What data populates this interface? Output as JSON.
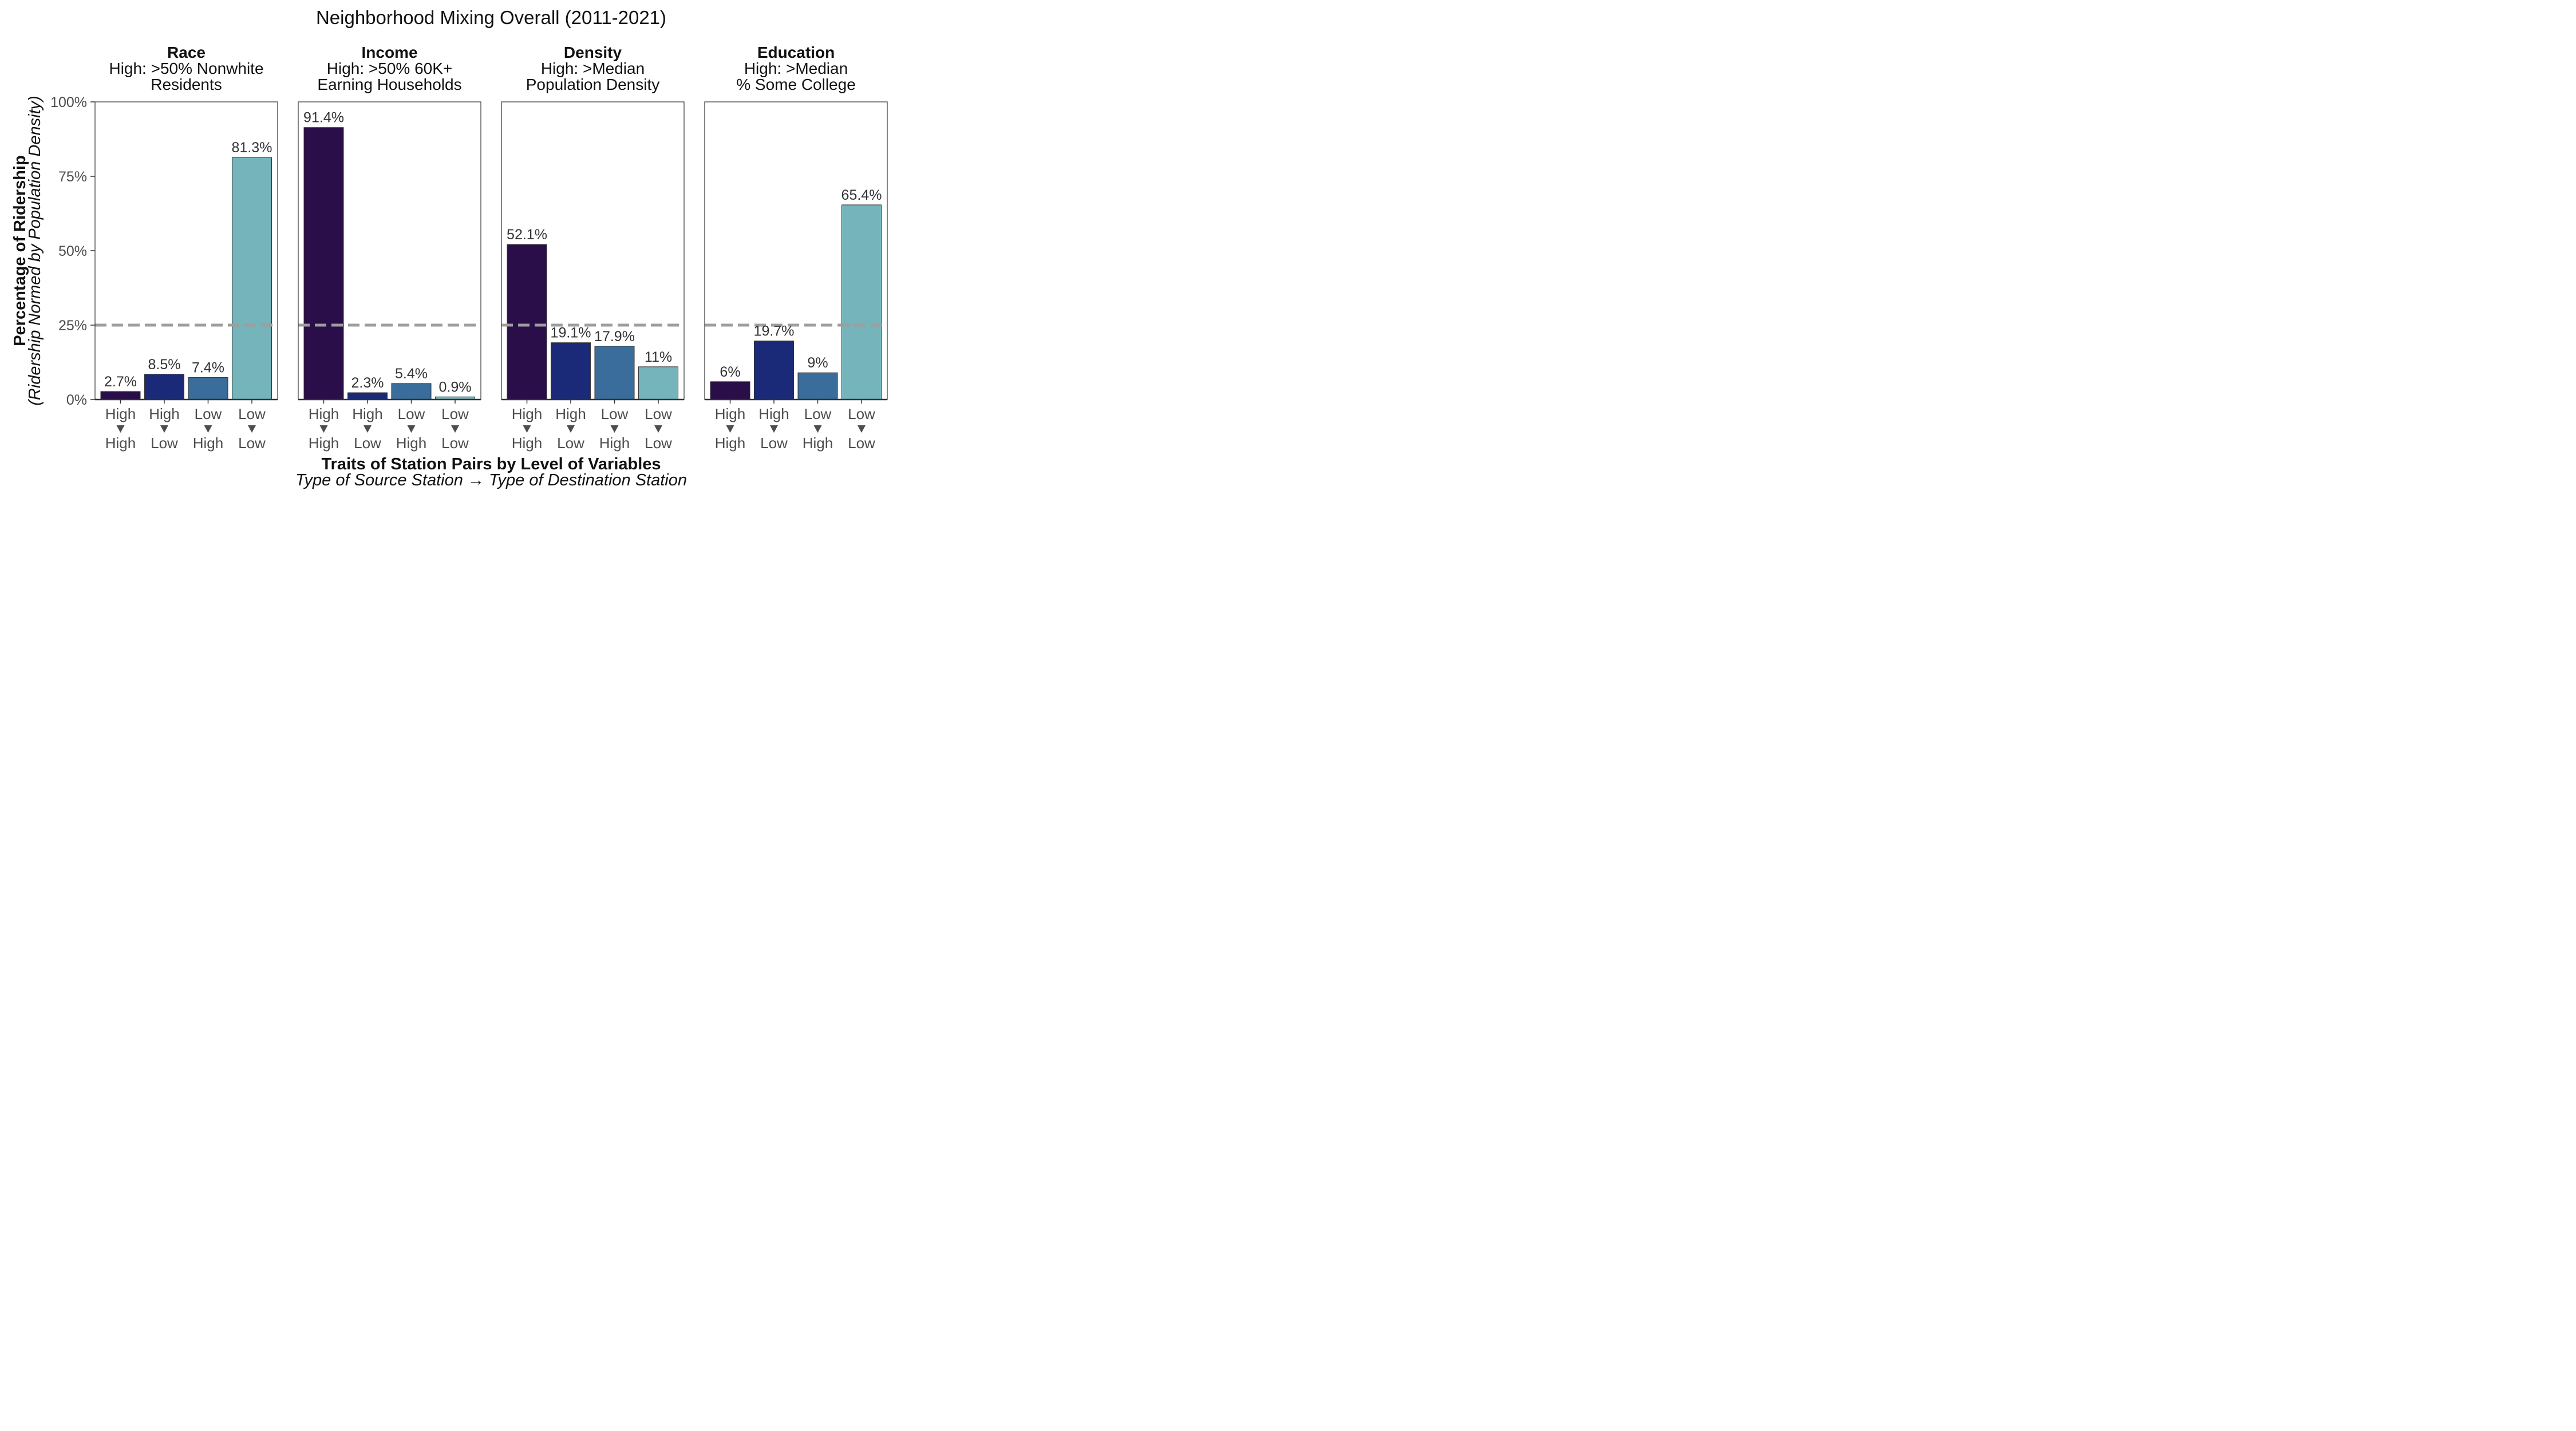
{
  "chart_data": {
    "type": "bar",
    "title": "Neighborhood Mixing Overall (2011-2021)",
    "xlabel": "Traits of Station Pairs by Level of Variables",
    "xlabel_sub": "Type of Source Station → Type of Destination Station",
    "ylabel": "Percentage of Ridership",
    "ylabel_sub": "(Ridership Normed by Population Density)",
    "ylim": [
      0,
      100
    ],
    "yticks": [
      "0%",
      "25%",
      "50%",
      "75%",
      "100%"
    ],
    "ytick_values": [
      0,
      25,
      50,
      75,
      100
    ],
    "reference_line": 25,
    "reference_line_color": "#9e9e9e",
    "grid": false,
    "category_pairs": [
      {
        "from": "High",
        "to": "High"
      },
      {
        "from": "High",
        "to": "Low"
      },
      {
        "from": "Low",
        "to": "High"
      },
      {
        "from": "Low",
        "to": "Low"
      }
    ],
    "bar_colors": [
      "#2a0e49",
      "#1a2a78",
      "#3a6d9b",
      "#74b4ba"
    ],
    "panels": [
      {
        "title": "Race",
        "subtitle_lines": [
          "High: >50% Nonwhite",
          "Residents"
        ],
        "values": [
          2.7,
          8.5,
          7.4,
          81.3
        ],
        "value_labels": [
          "2.7%",
          "8.5%",
          "7.4%",
          "81.3%"
        ]
      },
      {
        "title": "Income",
        "subtitle_lines": [
          "High: >50% 60K+",
          "Earning Households"
        ],
        "values": [
          91.4,
          2.3,
          5.4,
          0.9
        ],
        "value_labels": [
          "91.4%",
          "2.3%",
          "5.4%",
          "0.9%"
        ]
      },
      {
        "title": "Density",
        "subtitle_lines": [
          "High: >Median",
          "Population Density"
        ],
        "values": [
          52.1,
          19.1,
          17.9,
          11
        ],
        "value_labels": [
          "52.1%",
          "19.1%",
          "17.9%",
          "11%"
        ]
      },
      {
        "title": "Education",
        "subtitle_lines": [
          "High: >Median",
          "% Some College"
        ],
        "values": [
          6,
          19.7,
          9,
          65.4
        ],
        "value_labels": [
          "6%",
          "19.7%",
          "9%",
          "65.4%"
        ]
      }
    ]
  }
}
